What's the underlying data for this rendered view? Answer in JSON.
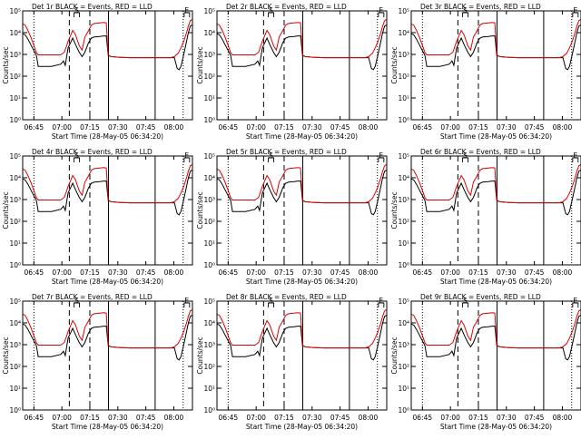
{
  "figure": {
    "ylabel": "Counts/sec",
    "xlabel": "Start Time (28-May-05 06:34:20)",
    "colors": {
      "events": "#000000",
      "lld": "#dd0000",
      "axes": "#000000"
    }
  },
  "chart_data": [
    {
      "type": "line",
      "title": "Det 1r  BLACK = Events, RED = LLD"
    },
    {
      "type": "line",
      "title": "Det 2r  BLACK = Events, RED = LLD"
    },
    {
      "type": "line",
      "title": "Det 3r  BLACK = Events, RED = LLD"
    },
    {
      "type": "line",
      "title": "Det 4r  BLACK = Events, RED = LLD"
    },
    {
      "type": "line",
      "title": "Det 5r  BLACK = Events, RED = LLD"
    },
    {
      "type": "line",
      "title": "Det 6r  BLACK = Events, RED = LLD"
    },
    {
      "type": "line",
      "title": "Det 7r  BLACK = Events, RED = LLD"
    },
    {
      "type": "line",
      "title": "Det 8r  BLACK = Events, RED = LLD"
    },
    {
      "type": "line",
      "title": "Det 9r  BLACK = Events, RED = LLD"
    }
  ],
  "shared_axes": {
    "xlim_min": [
      4.667,
      95.667
    ],
    "xticks_min": [
      10.667,
      25.667,
      40.667,
      55.667,
      70.667,
      85.667
    ],
    "xtick_labels": [
      "06:45",
      "07:00",
      "07:15",
      "07:30",
      "07:45",
      "08:00"
    ],
    "ylim_log10": [
      0,
      5
    ],
    "yticks_log10": [
      0,
      1,
      2,
      3,
      4,
      5
    ],
    "ytick_labels": [
      "10⁰",
      "10¹",
      "10²",
      "10³",
      "10⁴",
      "10⁵"
    ],
    "vlines": [
      {
        "x": 10.667,
        "style": "dotted"
      },
      {
        "x": 29.667,
        "style": "dashed"
      },
      {
        "x": 40.667,
        "style": "dashed"
      },
      {
        "x": 50.667,
        "style": "solid"
      },
      {
        "x": 75.667,
        "style": "solid"
      },
      {
        "x": 90.667,
        "style": "dotted"
      }
    ],
    "markers": [
      {
        "x": 33.667,
        "label": "S"
      },
      {
        "x": 92.667,
        "label": "E"
      }
    ]
  },
  "series_template": {
    "lld": {
      "x": [
        4.7,
        6,
        7.5,
        9,
        10.5,
        12,
        13,
        20,
        25,
        27,
        29,
        31.5,
        33,
        35,
        36.5,
        38,
        40,
        41.5,
        43,
        46,
        48,
        49.5,
        50.5,
        52,
        56,
        62,
        70,
        78,
        84,
        86,
        88,
        89.5,
        91,
        92.5,
        93.5,
        94.5,
        95.5
      ],
      "y": [
        4.4,
        4.35,
        4.1,
        3.8,
        3.45,
        3.08,
        2.98,
        2.98,
        2.98,
        3.1,
        3.6,
        4.1,
        3.9,
        3.4,
        3.2,
        3.8,
        4.1,
        4.35,
        4.42,
        4.45,
        4.47,
        4.45,
        2.98,
        2.9,
        2.87,
        2.85,
        2.85,
        2.85,
        2.85,
        2.9,
        3.05,
        3.3,
        3.6,
        4.0,
        4.3,
        4.55,
        4.6
      ]
    },
    "events": {
      "x": [
        4.7,
        6,
        7.5,
        9,
        10.5,
        12,
        13,
        20,
        25,
        26.5,
        27.5,
        29,
        31.5,
        33,
        35,
        36.5,
        38,
        40,
        41.5,
        43,
        46,
        48,
        49.5,
        50.5,
        52,
        56,
        62,
        70,
        78,
        84,
        86,
        87.5,
        88.5,
        89.5,
        91,
        92.5,
        93.5,
        94.5,
        95.5
      ],
      "y": [
        3.95,
        3.9,
        3.7,
        3.45,
        3.2,
        2.95,
        2.45,
        2.45,
        2.55,
        2.7,
        2.5,
        3.3,
        3.75,
        3.45,
        3.1,
        2.9,
        3.1,
        3.55,
        3.75,
        3.8,
        3.82,
        3.85,
        3.85,
        2.95,
        2.9,
        2.87,
        2.85,
        2.85,
        2.85,
        2.85,
        2.85,
        2.35,
        2.3,
        2.45,
        3.0,
        3.6,
        4.0,
        4.3,
        4.35
      ]
    }
  }
}
